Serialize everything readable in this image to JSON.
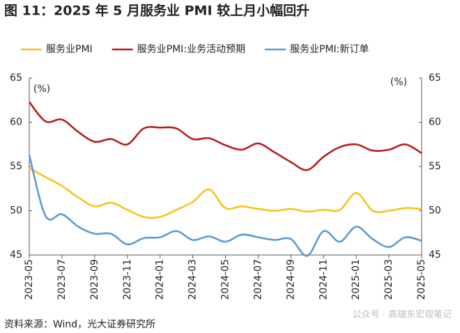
{
  "chart_data": {
    "type": "line",
    "title": "图 11：2025 年 5 月服务业 PMI 较上月小幅回升",
    "y_unit": "(%)",
    "y2_unit": "(%)",
    "source": "资料来源：Wind，光大证券研究所",
    "watermark": "公众号 · 高瑞东宏观笔记",
    "categories": [
      "2023-05",
      null,
      "2023-07",
      null,
      "2023-09",
      null,
      "2023-11",
      null,
      "2024-01",
      null,
      "2024-03",
      null,
      "2024-05",
      null,
      "2024-07",
      null,
      "2024-09",
      null,
      "2024-11",
      null,
      "2025-01",
      null,
      "2025-03",
      null,
      "2025-05"
    ],
    "series": [
      {
        "name": "服务业PMI",
        "color": "#f5c41a",
        "values": [
          54.8,
          53.8,
          52.8,
          51.5,
          50.5,
          50.9,
          50.1,
          49.3,
          49.3,
          50.1,
          51.0,
          52.4,
          50.3,
          50.5,
          50.2,
          50.0,
          50.2,
          49.9,
          50.1,
          50.1,
          52.0,
          50.0,
          50.0,
          50.3,
          50.2
        ]
      },
      {
        "name": "服务业PMI:业务活动预期",
        "color": "#b81c1c",
        "values": [
          62.3,
          60.1,
          60.3,
          58.9,
          57.8,
          58.1,
          57.5,
          59.3,
          59.4,
          59.3,
          58.1,
          58.2,
          57.4,
          56.9,
          57.6,
          56.6,
          55.5,
          54.6,
          56.1,
          57.2,
          57.5,
          56.8,
          56.9,
          57.5,
          56.5
        ]
      },
      {
        "name": "服务业PMI:新订单",
        "color": "#5b9bd5",
        "values": [
          56.3,
          49.4,
          49.6,
          48.2,
          47.4,
          47.4,
          46.2,
          46.9,
          47.0,
          47.7,
          46.7,
          47.1,
          46.5,
          47.3,
          47.0,
          46.7,
          46.8,
          44.9,
          47.7,
          46.5,
          48.2,
          46.8,
          45.9,
          47.0,
          46.6
        ]
      }
    ],
    "ylim": [
      45,
      65
    ],
    "yticks": [
      45,
      50,
      55,
      60,
      65
    ],
    "y2lim": [
      45,
      65
    ],
    "y2ticks": [
      45,
      50,
      55,
      60,
      65
    ],
    "grid": false,
    "legend": "top"
  }
}
